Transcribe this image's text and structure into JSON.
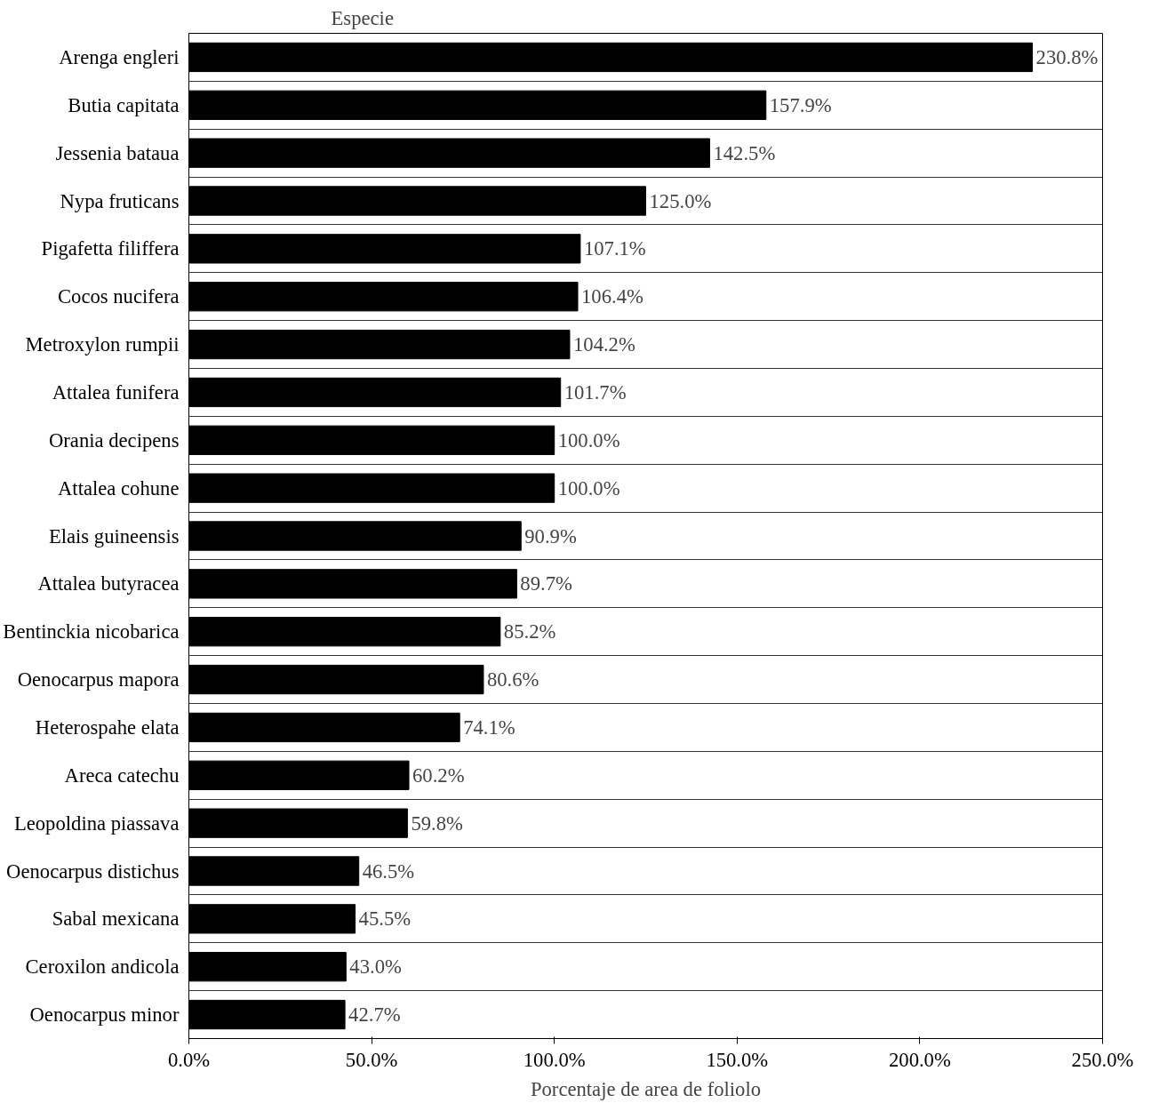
{
  "chart_data": {
    "type": "bar",
    "orientation": "horizontal",
    "ylabel": "Especie",
    "xlabel": "Porcentaje de area de foliolo",
    "categories": [
      "Arenga engleri",
      "Butia capitata",
      "Jessenia bataua",
      "Nypa fruticans",
      "Pigafetta filiffera",
      "Cocos nucifera",
      "Metroxylon rumpii",
      "Attalea funifera",
      "Orania decipens",
      "Attalea cohune",
      "Elais guineensis",
      "Attalea butyracea",
      "Bentinckia nicobarica",
      "Oenocarpus mapora",
      "Heterospahe elata",
      "Areca catechu",
      "Leopoldina piassava",
      "Oenocarpus distichus",
      "Sabal mexicana",
      "Ceroxilon andicola",
      "Oenocarpus minor"
    ],
    "values": [
      230.8,
      157.9,
      142.5,
      125.0,
      107.1,
      106.4,
      104.2,
      101.7,
      100.0,
      100.0,
      90.9,
      89.7,
      85.2,
      80.6,
      74.1,
      60.2,
      59.8,
      46.5,
      45.5,
      43.0,
      42.7
    ],
    "value_labels": [
      "230.8%",
      "157.9%",
      "142.5%",
      "125.0%",
      "107.1%",
      "106.4%",
      "104.2%",
      "101.7%",
      "100.0%",
      "100.0%",
      "90.9%",
      "89.7%",
      "85.2%",
      "80.6%",
      "74.1%",
      "60.2%",
      "59.8%",
      "46.5%",
      "45.5%",
      "43.0%",
      "42.7%"
    ],
    "color": "#000000",
    "xlim": [
      0,
      250
    ],
    "xticks": [
      {
        "value": 0,
        "label": "0.0%"
      },
      {
        "value": 50,
        "label": "50.0%"
      },
      {
        "value": 100,
        "label": "100.0%"
      },
      {
        "value": 150,
        "label": "150.0%"
      },
      {
        "value": 200,
        "label": "200.0%"
      },
      {
        "value": 250,
        "label": "250.0%"
      }
    ],
    "grid": "y"
  }
}
